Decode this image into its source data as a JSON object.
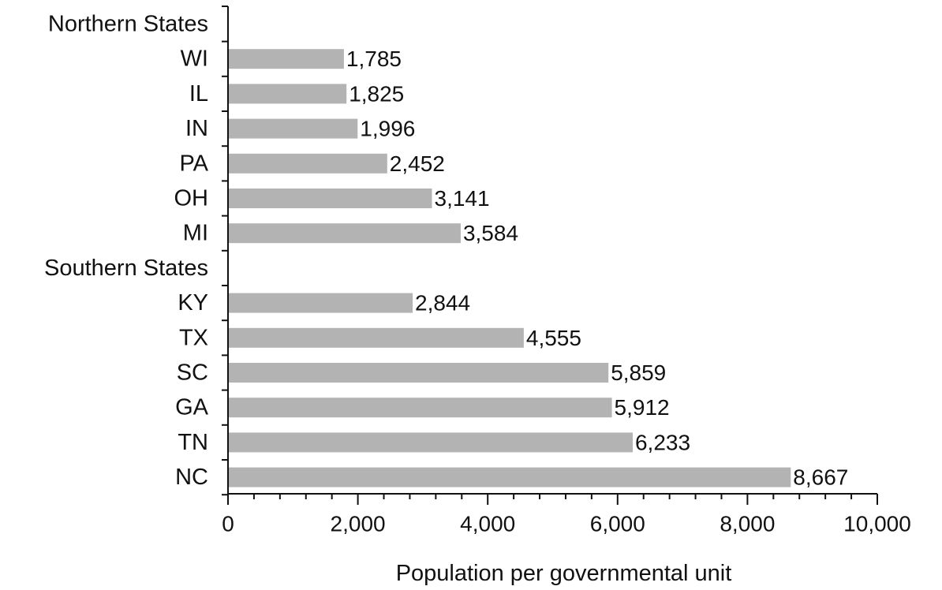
{
  "chart_data": {
    "type": "bar",
    "orientation": "horizontal",
    "title": "",
    "xlabel": "Population per governmental unit",
    "ylabel": "",
    "xlim": [
      0,
      10000
    ],
    "x_ticks": [
      0,
      2000,
      4000,
      6000,
      8000,
      10000
    ],
    "x_tick_labels": [
      "0",
      "2,000",
      "4,000",
      "6,000",
      "8,000",
      "10,000"
    ],
    "grid": false,
    "bar_color": "#b3b3b3",
    "groups": [
      {
        "name": "Northern States",
        "categories": [
          "WI",
          "IL",
          "IN",
          "PA",
          "OH",
          "MI"
        ],
        "values": [
          1785,
          1825,
          1996,
          2452,
          3141,
          3584
        ],
        "value_labels": [
          "1,785",
          "1,825",
          "1,996",
          "2,452",
          "3,141",
          "3,584"
        ]
      },
      {
        "name": "Southern States",
        "categories": [
          "KY",
          "TX",
          "SC",
          "GA",
          "TN",
          "NC"
        ],
        "values": [
          2844,
          4555,
          5859,
          5912,
          6233,
          8667
        ],
        "value_labels": [
          "2,844",
          "4,555",
          "5,859",
          "5,912",
          "6,233",
          "8,667"
        ]
      }
    ]
  }
}
